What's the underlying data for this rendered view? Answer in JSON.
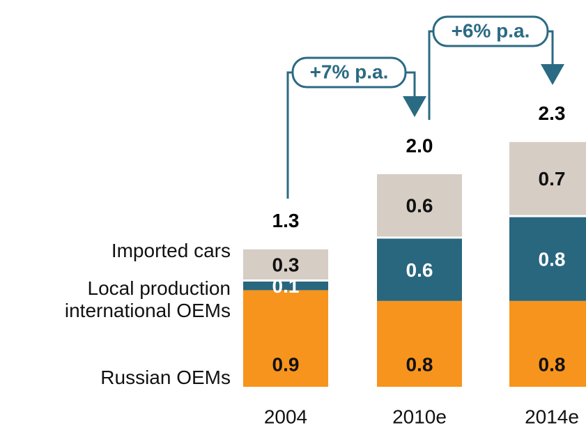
{
  "chart_data": {
    "type": "stacked_bar",
    "categories": [
      "2004",
      "2010e",
      "2014e"
    ],
    "series": [
      {
        "name": "Russian OEMs",
        "color": "#f7941d",
        "values": [
          0.9,
          0.8,
          0.8
        ]
      },
      {
        "name": "Local production international OEMs",
        "color": "#29677f",
        "values": [
          0.1,
          0.6,
          0.8
        ]
      },
      {
        "name": "Imported cars",
        "color": "#d6cdc5",
        "values": [
          0.3,
          0.6,
          0.7
        ]
      }
    ],
    "totals": {
      "values": [
        1.3,
        2.0,
        2.3
      ],
      "value_labels": [
        "1.3",
        "2.0",
        "2.3"
      ]
    },
    "annotations": [
      "+7% p.a.",
      "+6% p.a."
    ]
  }
}
